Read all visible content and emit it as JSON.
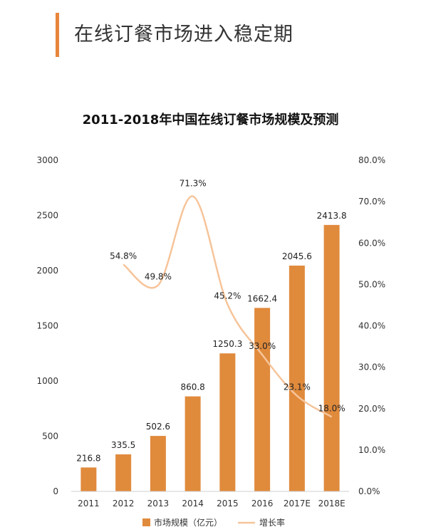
{
  "header": {
    "title": "在线订餐市场进入稳定期"
  },
  "chart_data": {
    "type": "bar+line",
    "title": "2011-2018年中国在线订餐市场规模及预测",
    "categories": [
      "2011",
      "2012",
      "2013",
      "2014",
      "2015",
      "2016",
      "2017E",
      "2018E"
    ],
    "series": [
      {
        "name": "市场规模（亿元）",
        "type": "bar",
        "axis": "left",
        "color": "#e08a3c",
        "values": [
          216.8,
          335.5,
          502.6,
          860.8,
          1250.3,
          1662.4,
          2045.6,
          2413.8
        ],
        "labels": [
          "216.8",
          "335.5",
          "502.6",
          "860.8",
          "1250.3",
          "1662.4",
          "2045.6",
          "2413.8"
        ]
      },
      {
        "name": "增长率",
        "type": "line",
        "axis": "right",
        "color": "#f6c49a",
        "values": [
          null,
          54.8,
          49.8,
          71.3,
          45.2,
          33.0,
          23.1,
          18.0
        ],
        "labels": [
          "",
          "54.8%",
          "49.8%",
          "71.3%",
          "45.2%",
          "33.0%",
          "23.1%",
          "18.0%"
        ]
      }
    ],
    "left_axis": {
      "ylim": [
        0,
        3000
      ],
      "ticks": [
        "0",
        "500",
        "1000",
        "1500",
        "2000",
        "2500",
        "3000"
      ]
    },
    "right_axis": {
      "ylim": [
        0,
        80
      ],
      "ticks": [
        "0.0%",
        "10.0%",
        "20.0%",
        "30.0%",
        "40.0%",
        "50.0%",
        "60.0%",
        "70.0%",
        "80.0%"
      ]
    },
    "grid": false,
    "legend_position": "bottom"
  }
}
